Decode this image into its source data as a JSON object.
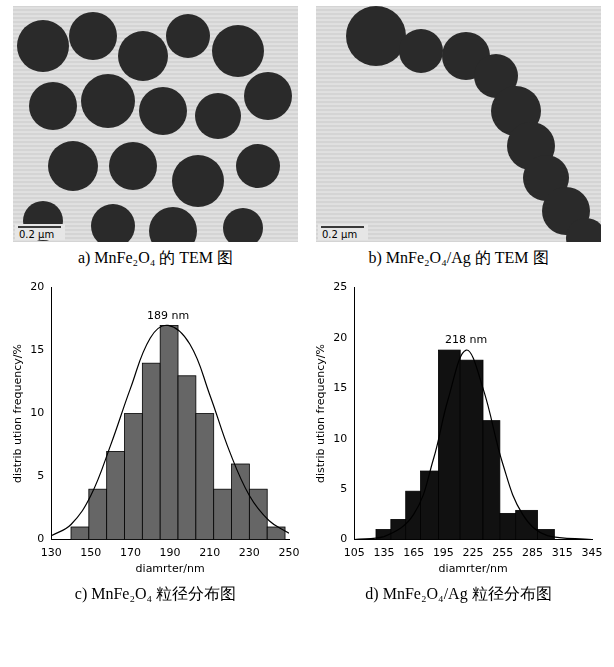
{
  "images": [
    {
      "caption": "a) MnFe₂O₄ 的 TEM 图",
      "scale_bar": "0.2 μm"
    },
    {
      "caption": "b) MnFe₂O₄/Ag 的 TEM 图",
      "scale_bar": "0.2 μm"
    }
  ],
  "chart_data": [
    {
      "type": "histogram",
      "title": "c) MnFe₂O₄ 粒径分布图",
      "x_label": "diamrter/nm",
      "y_label": "distrib ution frequency/%",
      "bins": [
        140,
        149,
        158,
        167,
        176,
        185,
        194,
        203,
        212,
        221,
        230,
        239,
        248
      ],
      "values": [
        1,
        4,
        7,
        10,
        14,
        17,
        13,
        10,
        4,
        6,
        4,
        1
      ],
      "color": "#666666",
      "fit": {
        "x": [
          130,
          140,
          150,
          160,
          170,
          180,
          189,
          200,
          210,
          220,
          230,
          240,
          250
        ],
        "y": [
          0.3,
          1.2,
          3.5,
          7.5,
          12,
          16,
          17,
          15.5,
          11.5,
          7,
          3.5,
          1.5,
          0.5
        ]
      },
      "annotations": [
        {
          "text": "189 nm",
          "x": 189,
          "y": 17
        }
      ],
      "xlim": [
        130,
        250
      ],
      "xticks": [
        130,
        150,
        170,
        190,
        210,
        230,
        250
      ],
      "ylim": [
        0,
        20
      ],
      "yticks": [
        0,
        5,
        10,
        15,
        20
      ],
      "grid": false
    },
    {
      "type": "histogram",
      "title": "d) MnFe₂O₄/Ag 粒径分布图",
      "x_label": "diamrter/nm",
      "y_label": "distrib ution frequency/%",
      "bins": [
        127,
        142,
        157,
        172,
        190,
        212,
        235,
        252,
        268,
        290,
        307
      ],
      "values": [
        1,
        2,
        4.8,
        6.8,
        18.8,
        17.8,
        11.8,
        2.6,
        2.9,
        1
      ],
      "color": "#111111",
      "fit": {
        "x": [
          105,
          135,
          165,
          185,
          200,
          218,
          235,
          255,
          275,
          300,
          345
        ],
        "y": [
          0,
          0.3,
          2.5,
          8,
          14,
          18.8,
          15,
          7.5,
          2.5,
          0.4,
          0
        ]
      },
      "annotations": [
        {
          "text": "218 nm",
          "x": 218,
          "y": 18.8
        }
      ],
      "xlim": [
        105,
        345
      ],
      "xticks": [
        105,
        135,
        165,
        195,
        225,
        255,
        285,
        315,
        345
      ],
      "ylim": [
        0,
        25
      ],
      "yticks": [
        0,
        5,
        10,
        15,
        20,
        25
      ],
      "grid": false
    }
  ]
}
